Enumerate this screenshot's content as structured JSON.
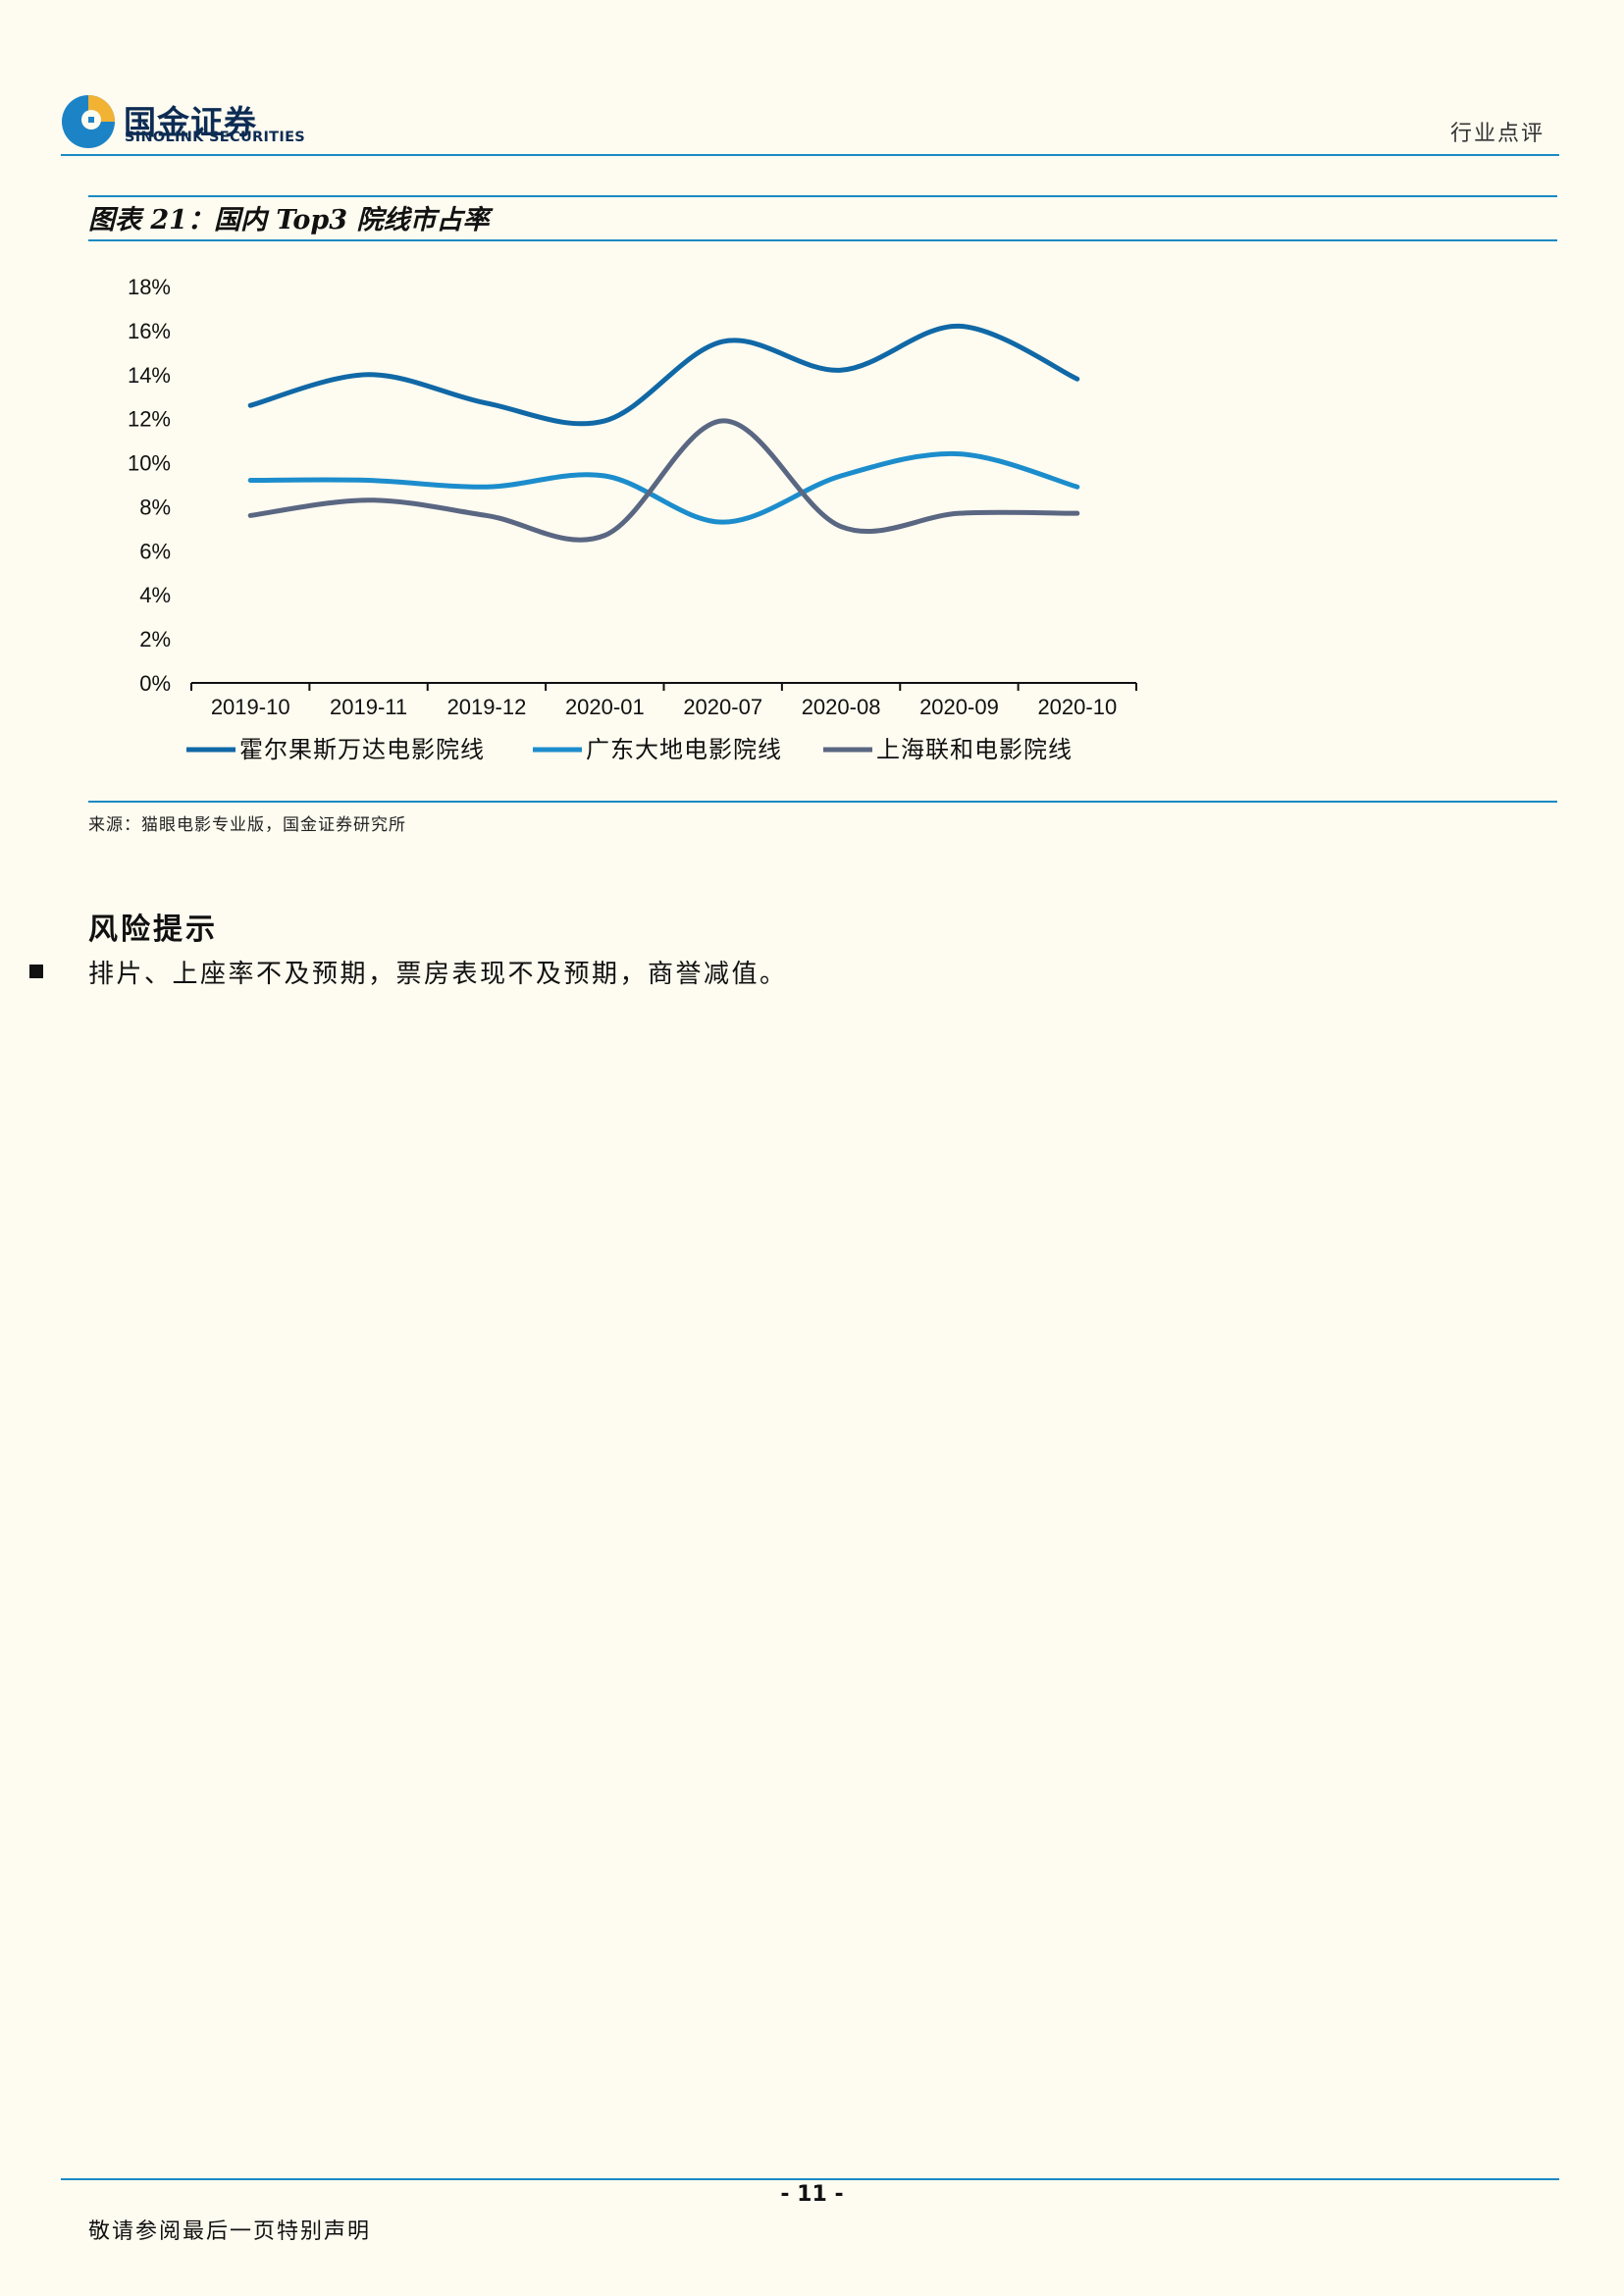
{
  "header": {
    "logo_cn": "国金证券",
    "logo_en": "SINOLINK SECURITIES",
    "doc_type": "行业点评",
    "colors": {
      "brand_dark": "#0d2c54",
      "brand_blue": "#1a8ac4"
    }
  },
  "figure": {
    "label": "图表 21：国内 Top3 院线市占率",
    "source": "来源：猫眼电影专业版，国金证券研究所"
  },
  "chart_data": {
    "type": "line",
    "categories": [
      "2019-10",
      "2019-11",
      "2019-12",
      "2020-01",
      "2020-07",
      "2020-08",
      "2020-09",
      "2020-10"
    ],
    "series": [
      {
        "name": "霍尔果斯万达电影院线",
        "color": "#1068a6",
        "values": [
          12.6,
          14.0,
          12.7,
          11.9,
          15.5,
          14.2,
          16.2,
          13.8
        ]
      },
      {
        "name": "广东大地电影院线",
        "color": "#1c8dcc",
        "values": [
          9.2,
          9.2,
          8.9,
          9.4,
          7.3,
          9.4,
          10.4,
          8.9
        ]
      },
      {
        "name": "上海联和电影院线",
        "color": "#5a6782",
        "values": [
          7.6,
          8.3,
          7.6,
          6.7,
          11.9,
          7.1,
          7.7,
          7.7
        ]
      }
    ],
    "y_ticks": [
      "0%",
      "2%",
      "4%",
      "6%",
      "8%",
      "10%",
      "12%",
      "14%",
      "16%",
      "18%"
    ],
    "ylim": [
      0,
      18
    ],
    "grid": false,
    "legend_position": "bottom"
  },
  "risk": {
    "heading": "风险提示",
    "items": [
      "排片、上座率不及预期，票房表现不及预期，商誉减值。"
    ]
  },
  "footer": {
    "page": "- 11 -",
    "note": "敬请参阅最后一页特别声明"
  }
}
